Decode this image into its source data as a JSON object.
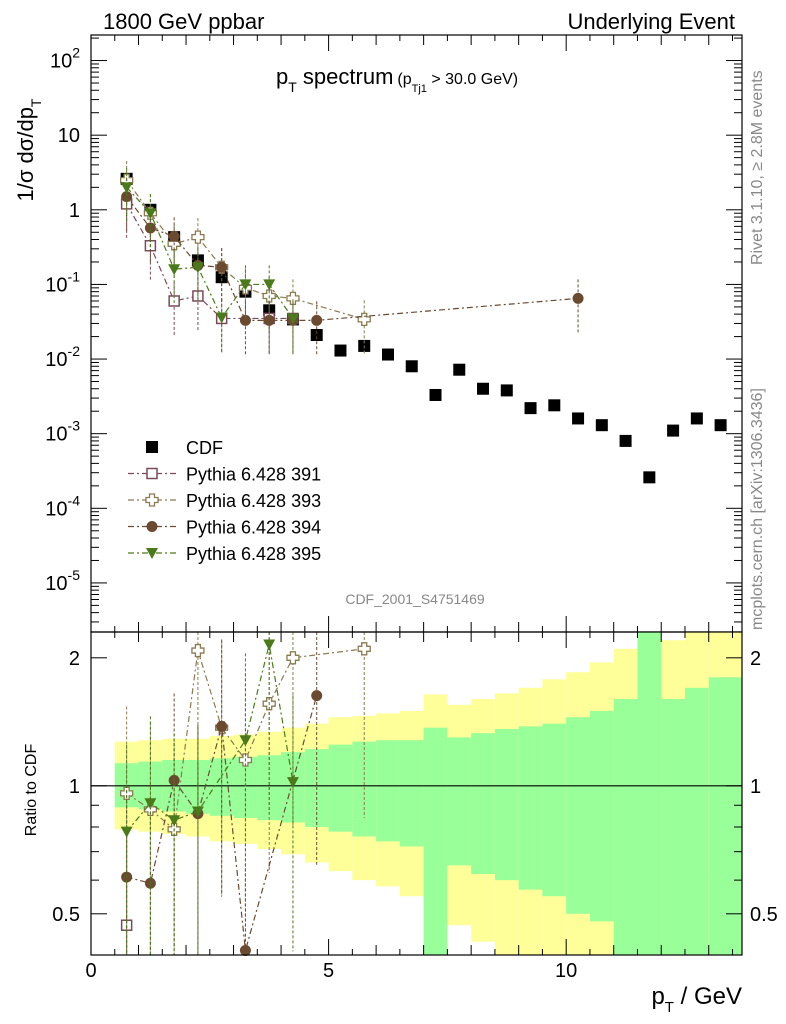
{
  "header": {
    "left": "1800 GeV ppbar",
    "right": "Underlying Event"
  },
  "side_labels": {
    "rivet": "Rivet 3.1.10, ≥ 2.8M events",
    "mcplots": "mcplots.cern.ch [arXiv:1306.3436]"
  },
  "watermark": "CDF_2001_S4751469",
  "chart_data": [
    {
      "type": "scatter",
      "title": "p_T spectrum (p_Tj1 > 30.0 GeV)",
      "title_main": "p",
      "title_main_sub": "T",
      "title_main_rest": " spectrum",
      "title_cut_open": "(p",
      "title_cut_sub": "Tj1",
      "title_cut_rest": " > 30.0 GeV)",
      "ylabel": "1/σ dσ/dp",
      "ylabel_sub": "T",
      "xlabel": "",
      "yscale": "log",
      "xlim": [
        0,
        13.7
      ],
      "ylim": [
        2.2e-06,
        220
      ],
      "y_tick_labels": [
        "10^-5",
        "10^-4",
        "10^-3",
        "10^-2",
        "10^-1",
        "1",
        "10",
        "10^2"
      ],
      "legend_position": "lower-left",
      "series": [
        {
          "name": "CDF",
          "color": "#000000",
          "marker": "square",
          "x": [
            0.75,
            1.25,
            1.75,
            2.25,
            2.75,
            3.25,
            3.75,
            4.25,
            4.75,
            5.25,
            5.75,
            6.25,
            6.75,
            7.25,
            7.75,
            8.25,
            8.75,
            9.25,
            9.75,
            10.25,
            10.75,
            11.25,
            11.75,
            12.25,
            12.75,
            13.25
          ],
          "y": [
            2.6,
            1.0,
            0.43,
            0.21,
            0.125,
            0.08,
            0.045,
            0.034,
            0.021,
            0.013,
            0.015,
            0.0115,
            0.008,
            0.0033,
            0.0072,
            0.004,
            0.0038,
            0.0022,
            0.0024,
            0.0016,
            0.0013,
            0.0008,
            0.00026,
            0.0011,
            0.0016,
            0.0013
          ]
        },
        {
          "name": "Pythia 6.428 391",
          "color": "#7a4a5a",
          "marker": "open-square",
          "x": [
            0.75,
            1.25,
            1.75,
            2.25,
            2.75,
            3.75,
            4.25
          ],
          "y": [
            1.2,
            0.33,
            0.06,
            0.07,
            0.035,
            0.035,
            0.035
          ]
        },
        {
          "name": "Pythia 6.428 393",
          "color": "#8a7a50",
          "marker": "open-cross",
          "x": [
            0.75,
            1.25,
            1.75,
            2.25,
            2.75,
            3.25,
            3.75,
            4.25,
            5.75
          ],
          "y": [
            2.5,
            0.9,
            0.35,
            0.43,
            0.17,
            0.09,
            0.07,
            0.065,
            0.034
          ]
        },
        {
          "name": "Pythia 6.428 394",
          "color": "#6b4a30",
          "marker": "circle",
          "x": [
            0.75,
            1.25,
            1.75,
            2.25,
            2.75,
            3.25,
            3.75,
            4.25,
            4.75,
            10.25
          ],
          "y": [
            1.5,
            0.57,
            0.44,
            0.18,
            0.17,
            0.033,
            0.033,
            0.033,
            0.033,
            0.065
          ]
        },
        {
          "name": "Pythia 6.428 395",
          "color": "#4a7a1a",
          "marker": "triangle-down",
          "x": [
            0.75,
            1.25,
            1.75,
            2.25,
            2.75,
            3.25,
            3.75,
            4.25
          ],
          "y": [
            2.0,
            0.9,
            0.16,
            0.17,
            0.036,
            0.1,
            0.1,
            0.035
          ]
        }
      ]
    },
    {
      "type": "scatter",
      "title": "",
      "ylabel": "Ratio to CDF",
      "xlabel": "p_T / GeV",
      "xlabel_main": "p",
      "xlabel_sub": "T",
      "xlabel_rest": " / GeV",
      "yscale": "log",
      "xlim": [
        0,
        13.7
      ],
      "ylim": [
        0.4,
        2.3
      ],
      "x_ticks": [
        0,
        5,
        10
      ],
      "y_ticks": [
        0.5,
        1,
        2
      ],
      "bin_edges": [
        0.5,
        1.0,
        1.5,
        2.0,
        2.5,
        3.0,
        3.5,
        4.0,
        4.5,
        5.0,
        5.5,
        6.0,
        6.5,
        7.0,
        7.5,
        8.0,
        8.5,
        9.0,
        9.5,
        10.0,
        10.5,
        11.0,
        11.5,
        12.0,
        12.5,
        13.0,
        13.7
      ],
      "band_green": {
        "upper": [
          1.13,
          1.14,
          1.15,
          1.15,
          1.16,
          1.17,
          1.18,
          1.2,
          1.22,
          1.25,
          1.27,
          1.28,
          1.28,
          1.37,
          1.3,
          1.33,
          1.36,
          1.38,
          1.4,
          1.45,
          1.5,
          1.6,
          2.6,
          1.6,
          1.7,
          1.8
        ],
        "lower": [
          0.89,
          0.88,
          0.87,
          0.86,
          0.85,
          0.84,
          0.83,
          0.82,
          0.8,
          0.78,
          0.76,
          0.74,
          0.72,
          0.37,
          0.65,
          0.62,
          0.6,
          0.57,
          0.55,
          0.5,
          0.48,
          0.38,
          0.2,
          0.38,
          0.38,
          0.38
        ]
      },
      "band_yellow": {
        "upper": [
          1.27,
          1.28,
          1.29,
          1.29,
          1.31,
          1.32,
          1.34,
          1.37,
          1.4,
          1.45,
          1.46,
          1.48,
          1.5,
          1.64,
          1.55,
          1.6,
          1.65,
          1.7,
          1.78,
          1.85,
          1.95,
          2.1,
          3.0,
          2.2,
          2.3,
          2.5
        ],
        "lower": [
          0.79,
          0.78,
          0.77,
          0.76,
          0.74,
          0.73,
          0.71,
          0.69,
          0.66,
          0.63,
          0.6,
          0.58,
          0.55,
          0.2,
          0.47,
          0.43,
          0.4,
          0.38,
          0.36,
          0.32,
          0.3,
          0.25,
          0.2,
          0.3,
          0.35,
          0.36
        ]
      },
      "series": [
        {
          "name": "Pythia 6.428 391",
          "color": "#7a4a5a",
          "marker": "open-square",
          "x": [
            0.75
          ],
          "y": [
            0.47
          ]
        },
        {
          "name": "Pythia 6.428 393",
          "color": "#8a7a50",
          "marker": "open-cross",
          "x": [
            0.75,
            1.25,
            1.75,
            2.25,
            2.75,
            3.25,
            3.75,
            4.25,
            5.75
          ],
          "y": [
            0.96,
            0.88,
            0.79,
            2.08,
            1.37,
            1.15,
            1.56,
            2.0,
            2.1
          ]
        },
        {
          "name": "Pythia 6.428 394",
          "color": "#6b4a30",
          "marker": "circle",
          "x": [
            0.75,
            1.25,
            1.75,
            2.25,
            2.75,
            3.25,
            4.75
          ],
          "y": [
            0.61,
            0.59,
            1.03,
            0.86,
            1.38,
            0.41,
            1.63
          ]
        },
        {
          "name": "Pythia 6.428 395",
          "color": "#4a7a1a",
          "marker": "triangle-down",
          "x": [
            0.75,
            1.25,
            1.75,
            2.25,
            3.25,
            3.75,
            4.25
          ],
          "y": [
            0.78,
            0.91,
            0.83,
            0.87,
            1.28,
            2.15,
            1.02
          ]
        }
      ]
    }
  ]
}
